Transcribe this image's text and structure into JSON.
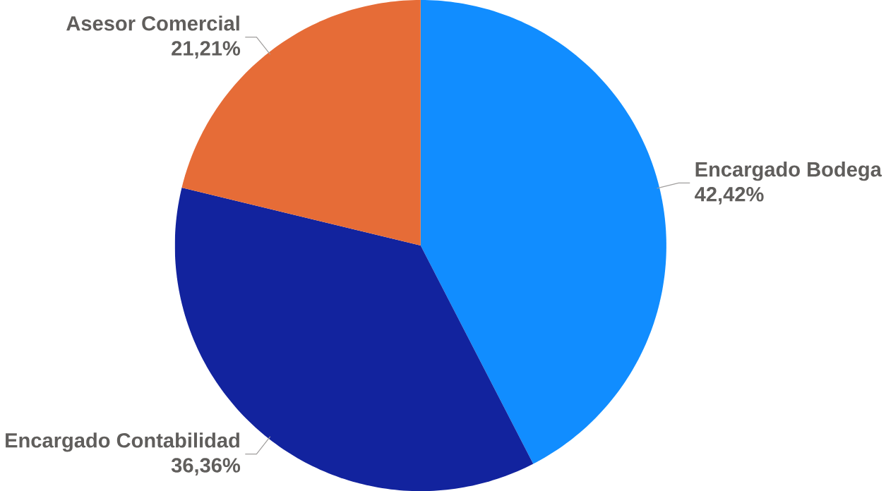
{
  "chart_data": {
    "type": "pie",
    "categories": [
      "Encargado Bodega",
      "Encargado Contabilidad",
      "Asesor Comercial"
    ],
    "values": [
      42.42,
      36.36,
      21.21
    ],
    "colors": [
      "#118dff",
      "#12239e",
      "#e66c37"
    ],
    "value_labels": [
      "42,42%",
      "36,36%",
      "21,21%"
    ]
  }
}
